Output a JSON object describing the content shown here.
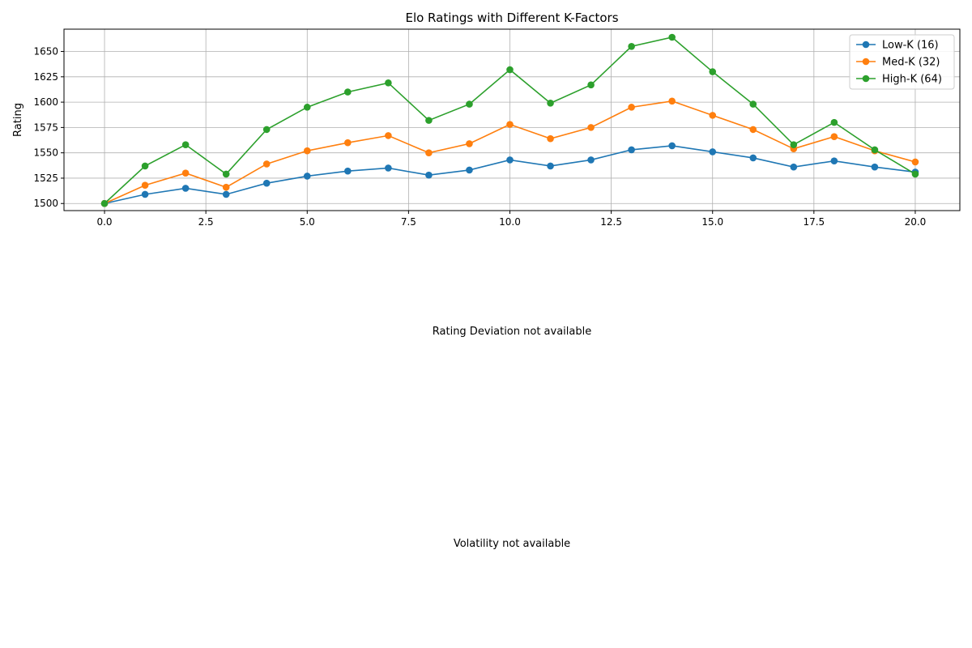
{
  "chart_data": {
    "type": "line",
    "title": "Elo Ratings with Different K-Factors",
    "xlabel": "",
    "ylabel": "Rating",
    "xlim": [
      -1,
      21.1
    ],
    "ylim": [
      1493,
      1672
    ],
    "xticks": [
      0,
      2.5,
      5,
      7.5,
      10,
      12.5,
      15,
      17.5,
      20
    ],
    "xtick_labels": [
      "0.0",
      "2.5",
      "5.0",
      "7.5",
      "10.0",
      "12.5",
      "15.0",
      "17.5",
      "20.0"
    ],
    "yticks": [
      1500,
      1525,
      1550,
      1575,
      1600,
      1625,
      1650
    ],
    "ytick_labels": [
      "1500",
      "1525",
      "1550",
      "1575",
      "1600",
      "1625",
      "1650"
    ],
    "grid": true,
    "legend_position": "top-right",
    "x": [
      0,
      1,
      2,
      3,
      4,
      5,
      6,
      7,
      8,
      9,
      10,
      11,
      12,
      13,
      14,
      15,
      16,
      17,
      18,
      19,
      20
    ],
    "series": [
      {
        "name": "Low-K (16)",
        "color": "#1f77b4",
        "values": [
          1500,
          1509,
          1515,
          1509,
          1520,
          1527,
          1532,
          1535,
          1528,
          1533,
          1543,
          1537,
          1543,
          1553,
          1557,
          1551,
          1545,
          1536,
          1542,
          1536,
          1531
        ]
      },
      {
        "name": "Med-K (32)",
        "color": "#ff7f0e",
        "values": [
          1500,
          1518,
          1530,
          1516,
          1539,
          1552,
          1560,
          1567,
          1550,
          1559,
          1578,
          1564,
          1575,
          1595,
          1601,
          1587,
          1573,
          1554,
          1566,
          1552,
          1541
        ]
      },
      {
        "name": "High-K (64)",
        "color": "#2ca02c",
        "values": [
          1500,
          1537,
          1558,
          1529,
          1573,
          1595,
          1610,
          1619,
          1582,
          1598,
          1632,
          1599,
          1617,
          1655,
          1664,
          1630,
          1598,
          1558,
          1580,
          1553,
          1529
        ]
      }
    ]
  },
  "placeholders": {
    "rating_deviation": "Rating Deviation not available",
    "volatility": "Volatility not available"
  }
}
